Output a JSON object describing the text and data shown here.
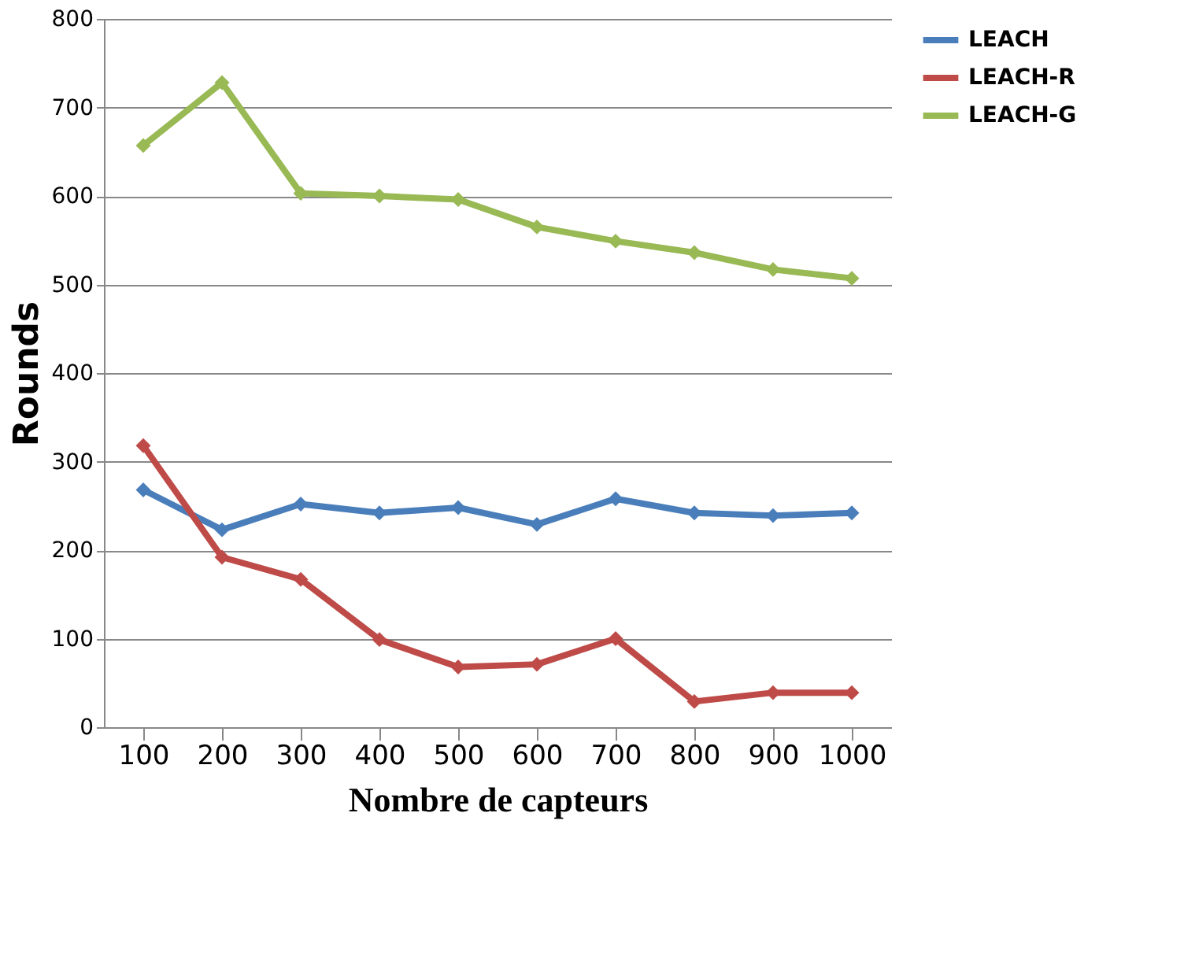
{
  "chart_data": {
    "type": "line",
    "xlabel": "Nombre de capteurs",
    "ylabel": "Rounds",
    "categories": [
      "100",
      "200",
      "300",
      "400",
      "500",
      "600",
      "700",
      "800",
      "900",
      "1000"
    ],
    "series": [
      {
        "name": "LEACH",
        "color": "#4a7ebb",
        "values": [
          268,
          223,
          252,
          242,
          248,
          229,
          258,
          242,
          239,
          242
        ]
      },
      {
        "name": "LEACH-R",
        "color": "#be4b48",
        "values": [
          318,
          192,
          167,
          99,
          68,
          71,
          100,
          29,
          39,
          39
        ]
      },
      {
        "name": "LEACH-G",
        "color": "#98b954",
        "values": [
          657,
          728,
          603,
          600,
          596,
          565,
          549,
          536,
          517,
          507
        ]
      }
    ],
    "ylim": [
      0,
      800
    ],
    "yticks": [
      0,
      100,
      200,
      300,
      400,
      500,
      600,
      700,
      800
    ],
    "grid": "y",
    "legend": "right",
    "marker": "diamond",
    "line_style": "solid"
  }
}
